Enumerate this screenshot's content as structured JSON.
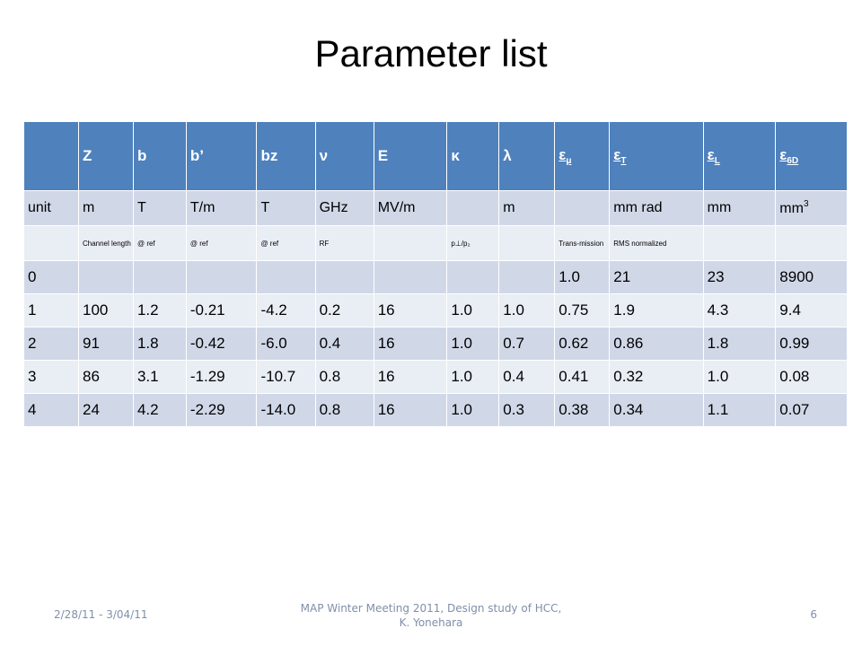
{
  "title": "Parameter list",
  "table": {
    "headers": [
      "",
      "Z",
      "b",
      "b’",
      "bz",
      "ν",
      "E",
      "κ",
      "λ",
      "ε",
      "ε",
      "ε",
      "ε"
    ],
    "header_subscripts": [
      "",
      "",
      "",
      "",
      "",
      "",
      "",
      "",
      "",
      "μ",
      "T",
      "L",
      "6D"
    ],
    "units": [
      "unit",
      "m",
      "T",
      "T/m",
      "T",
      "GHz",
      "MV/m",
      "",
      "m",
      "",
      "mm rad",
      "mm",
      "mm"
    ],
    "unit_superscripts": [
      "",
      "",
      "",
      "",
      "",
      "",
      "",
      "",
      "",
      "",
      "",
      "",
      "3"
    ],
    "notes": [
      "",
      "Channel length",
      "@ ref",
      "@ ref",
      "@ ref",
      "RF",
      "",
      "p⊥/p₂",
      "",
      "Trans-mission",
      "RMS normalized",
      "",
      ""
    ],
    "rows": [
      [
        "0",
        "",
        "",
        "",
        "",
        "",
        "",
        "",
        "",
        "1.0",
        "21",
        "23",
        "8900"
      ],
      [
        "1",
        "100",
        "1.2",
        "-0.21",
        "-4.2",
        "0.2",
        "16",
        "1.0",
        "1.0",
        "0.75",
        "1.9",
        "4.3",
        "9.4"
      ],
      [
        "2",
        "91",
        "1.8",
        "-0.42",
        "-6.0",
        "0.4",
        "16",
        "1.0",
        "0.7",
        "0.62",
        "0.86",
        "1.8",
        "0.99"
      ],
      [
        "3",
        "86",
        "3.1",
        "-1.29",
        "-10.7",
        "0.8",
        "16",
        "1.0",
        "0.4",
        "0.41",
        "0.32",
        "1.0",
        "0.08"
      ],
      [
        "4",
        "24",
        "4.2",
        "-2.29",
        "-14.0",
        "0.8",
        "16",
        "1.0",
        "0.3",
        "0.38",
        "0.34",
        "1.1",
        "0.07"
      ]
    ]
  },
  "footer": {
    "date": "2/28/11 - 3/04/11",
    "center": "MAP Winter Meeting 2011, Design study of HCC, K. Yonehara",
    "page": "6"
  },
  "colors": {
    "header": "#4f81bd",
    "band_dark": "#d0d8e8",
    "band_light": "#e9edf4"
  }
}
